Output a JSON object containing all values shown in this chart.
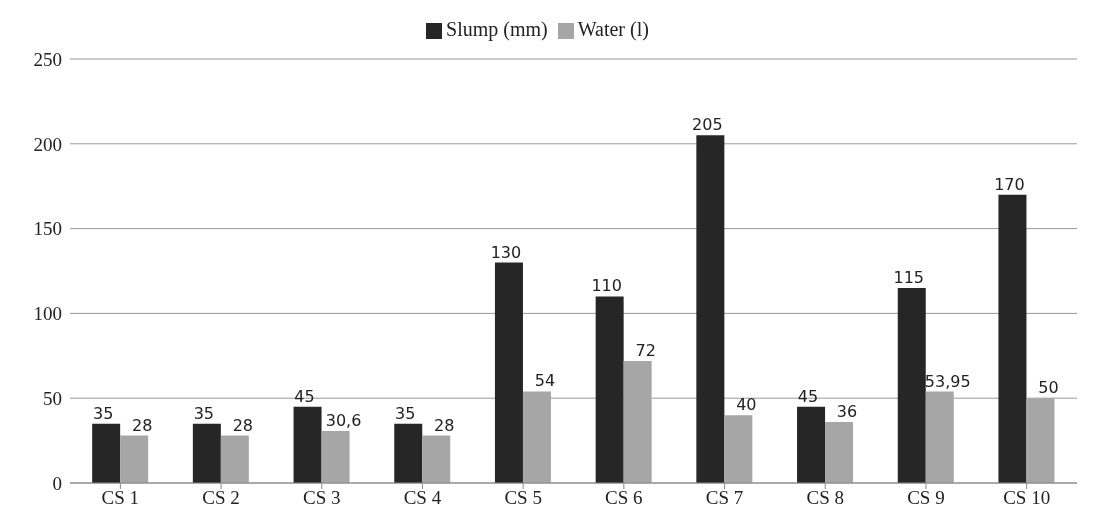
{
  "chart_data": {
    "type": "bar",
    "categories": [
      "CS 1",
      "CS 2",
      "CS 3",
      "CS 4",
      "CS 5",
      "CS 6",
      "CS 7",
      "CS 8",
      "CS 9",
      "CS 10"
    ],
    "series": [
      {
        "name": "Slump (mm)",
        "color": "#262626",
        "values": [
          35,
          35,
          45,
          35,
          130,
          110,
          205,
          45,
          115,
          170
        ],
        "value_labels": [
          "35",
          "35",
          "45",
          "35",
          "130",
          "110",
          "205",
          "45",
          "115",
          "170"
        ]
      },
      {
        "name": "Water (l)",
        "color": "#a6a6a6",
        "values": [
          28,
          28,
          30.6,
          28,
          54,
          72,
          40,
          36,
          53.95,
          50
        ],
        "value_labels": [
          "28",
          "28",
          "30,6",
          "28",
          "54",
          "72",
          "40",
          "36",
          "53,95",
          "50"
        ]
      }
    ],
    "ylim": [
      0,
      250
    ],
    "yticks": [
      0,
      50,
      100,
      150,
      200,
      250
    ],
    "grid": "y",
    "legend": "top"
  }
}
